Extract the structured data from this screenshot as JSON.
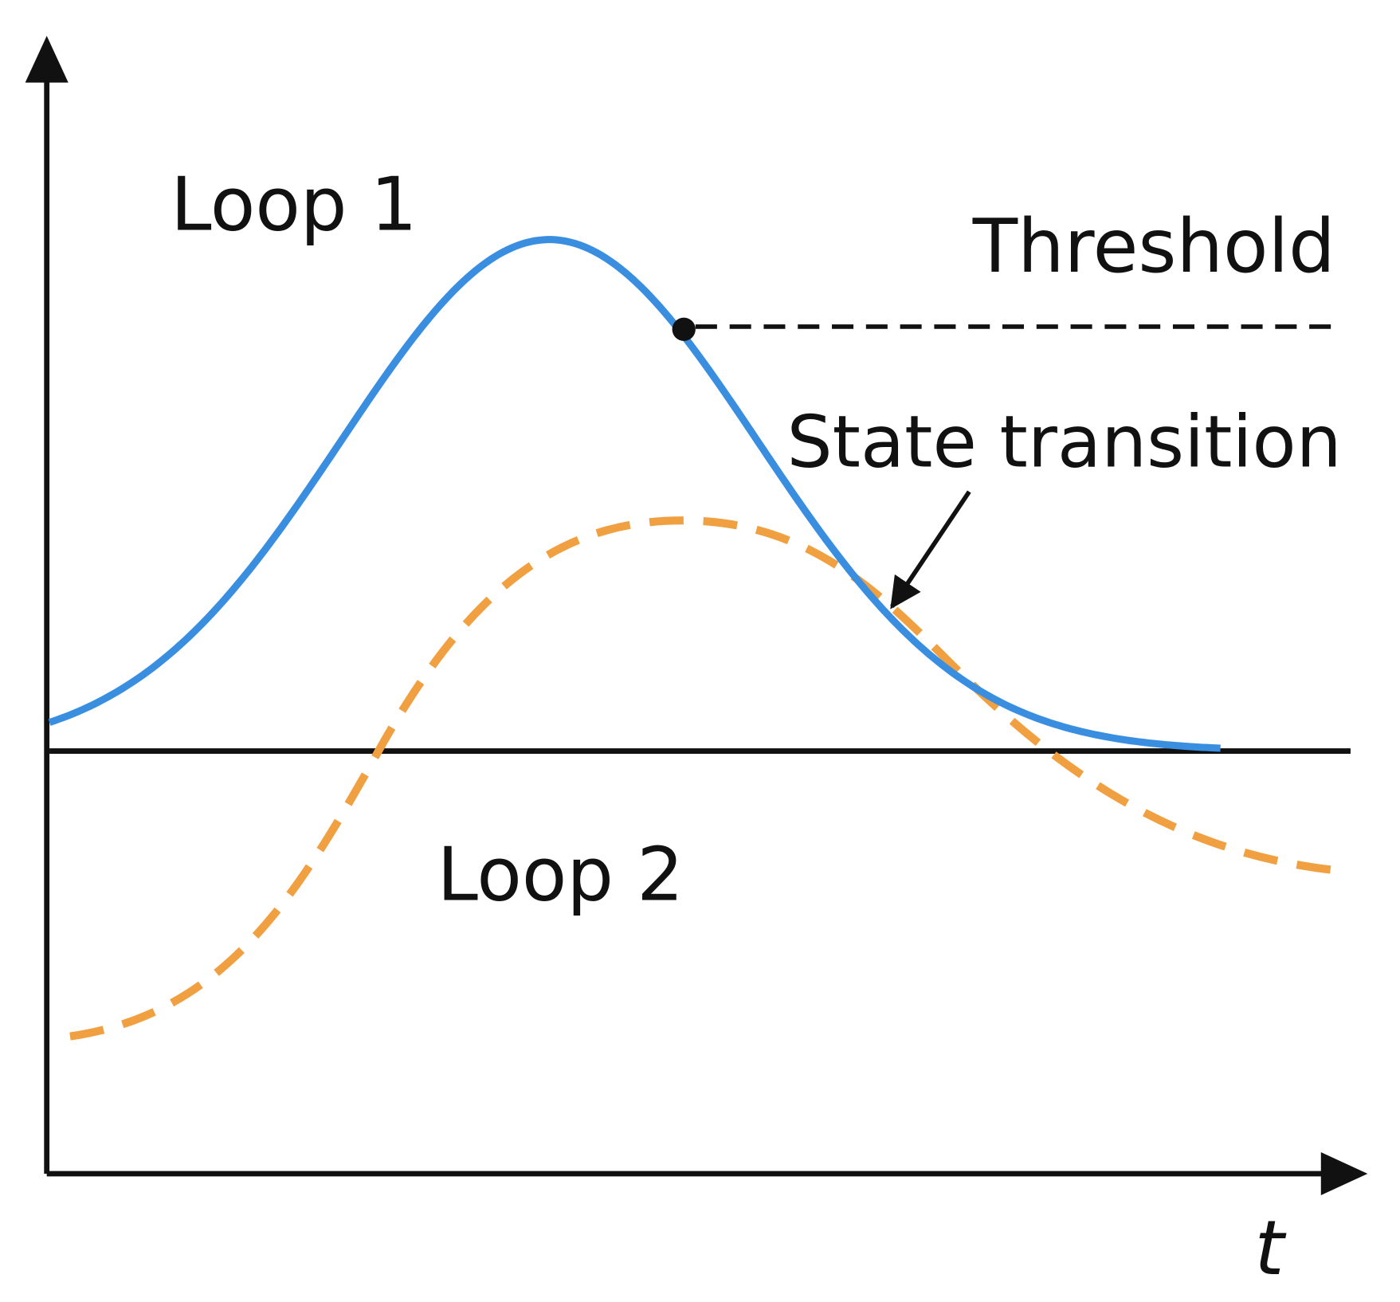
{
  "labels": {
    "loop1": "Loop 1",
    "threshold": "Threshold",
    "state_transition": "State transition",
    "loop2": "Loop 2",
    "time_axis": "t"
  }
}
